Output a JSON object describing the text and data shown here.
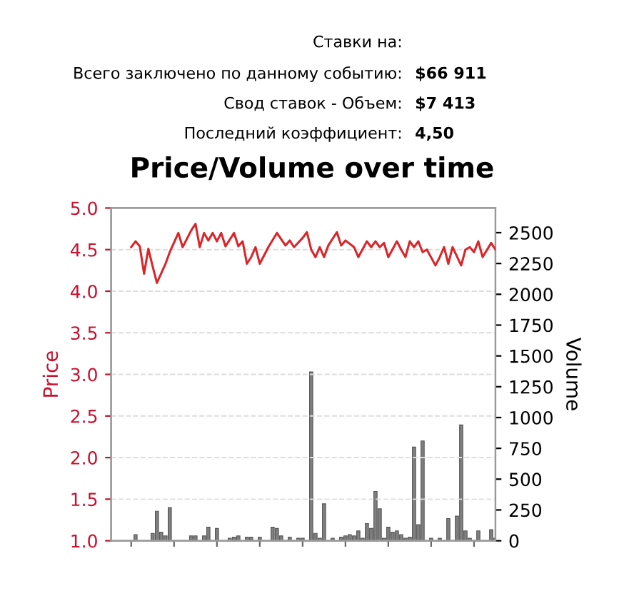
{
  "chart_data": {
    "type": "bar",
    "title": "Price/Volume over time",
    "ylabel": "Price",
    "y2label": "Volume",
    "annotations": [
      "Ставки на:",
      "Всего заключено по данному событию:",
      "$66 911",
      "Свод ставок - Объем:",
      "$7 413",
      "Последний коэффициент:",
      "4,50"
    ],
    "categories": [
      null,
      null,
      null,
      null,
      null,
      null,
      null,
      null,
      null,
      null,
      null,
      null,
      null,
      null,
      null,
      null,
      null,
      null,
      null,
      null,
      null,
      null,
      null,
      null,
      null,
      null,
      null,
      null,
      null,
      null,
      null,
      null,
      null,
      null,
      null,
      null,
      null,
      null,
      null,
      null,
      null,
      null,
      null,
      null,
      null,
      null,
      null,
      null,
      null,
      null,
      null,
      null,
      null,
      null,
      null,
      null,
      null,
      null,
      null,
      null,
      null,
      null,
      null,
      null,
      null,
      null,
      null,
      null,
      null,
      null,
      null,
      null,
      null,
      null,
      null,
      null,
      null,
      null,
      null,
      null,
      null,
      null,
      null,
      null,
      null,
      null,
      null,
      null,
      null,
      null
    ],
    "series": [
      {
        "name": null,
        "type": "line",
        "color": "#d9262b",
        "values": [
          null,
          null,
          null,
          null,
          4.53,
          4.6,
          4.54,
          4.21,
          4.51,
          4.3,
          4.1,
          null,
          4.33,
          4.47,
          null,
          4.7,
          4.53,
          null,
          4.73,
          4.81,
          4.53,
          4.7,
          4.61,
          4.7,
          4.6,
          4.7,
          4.54,
          null,
          4.7,
          4.54,
          4.6,
          4.33,
          4.41,
          4.53,
          4.33,
          null,
          4.53,
          null,
          4.7,
          null,
          4.55,
          4.61,
          4.53,
          null,
          4.64,
          4.71,
          4.5,
          4.41,
          4.53,
          4.41,
          4.55,
          null,
          4.71,
          4.55,
          4.61,
          null,
          4.53,
          4.41,
          null,
          4.6,
          4.53,
          4.6,
          4.53,
          4.58,
          4.41,
          null,
          4.6,
          4.5,
          4.41,
          4.6,
          4.53,
          4.6,
          4.47,
          4.5,
          null,
          4.31,
          4.41,
          4.53,
          4.33,
          4.53,
          null,
          4.31,
          4.5,
          4.53,
          4.47,
          4.6,
          4.41,
          null,
          4.58,
          4.5
        ]
      },
      {
        "name": null,
        "axis": "y2",
        "color": "#808080",
        "values": [
          null,
          null,
          null,
          null,
          null,
          50,
          null,
          null,
          null,
          60,
          240,
          70,
          40,
          270,
          null,
          null,
          null,
          null,
          40,
          40,
          null,
          40,
          110,
          null,
          100,
          null,
          null,
          20,
          30,
          40,
          null,
          30,
          30,
          null,
          30,
          null,
          null,
          110,
          100,
          40,
          null,
          30,
          null,
          20,
          20,
          null,
          1370,
          60,
          20,
          300,
          null,
          20,
          null,
          30,
          40,
          50,
          40,
          80,
          20,
          140,
          100,
          400,
          260,
          20,
          110,
          70,
          80,
          50,
          20,
          30,
          760,
          130,
          810,
          null,
          20,
          null,
          20,
          null,
          180,
          null,
          200,
          940,
          80,
          20,
          null,
          80,
          null,
          null,
          90,
          20
        ]
      }
    ],
    "ylim": [
      1,
      5
    ],
    "yticks": [
      {
        "value": 1,
        "label": "1.0"
      },
      {
        "value": 1.5,
        "label": "1.5"
      },
      {
        "value": 2,
        "label": "2.0"
      },
      {
        "value": 2.5,
        "label": "2.5"
      },
      {
        "value": 3,
        "label": "3.0"
      },
      {
        "value": 3.5,
        "label": "3.5"
      },
      {
        "value": 4,
        "label": "4.0"
      },
      {
        "value": 4.5,
        "label": "4.5"
      },
      {
        "value": 5,
        "label": "5.0"
      }
    ],
    "y2lim": [
      0,
      2700
    ],
    "y2ticks": [
      0,
      250,
      500,
      750,
      1000,
      1250,
      1500,
      1750,
      2000,
      2250,
      2500
    ],
    "grid": "y",
    "marker": "none",
    "line_style": "solid"
  }
}
